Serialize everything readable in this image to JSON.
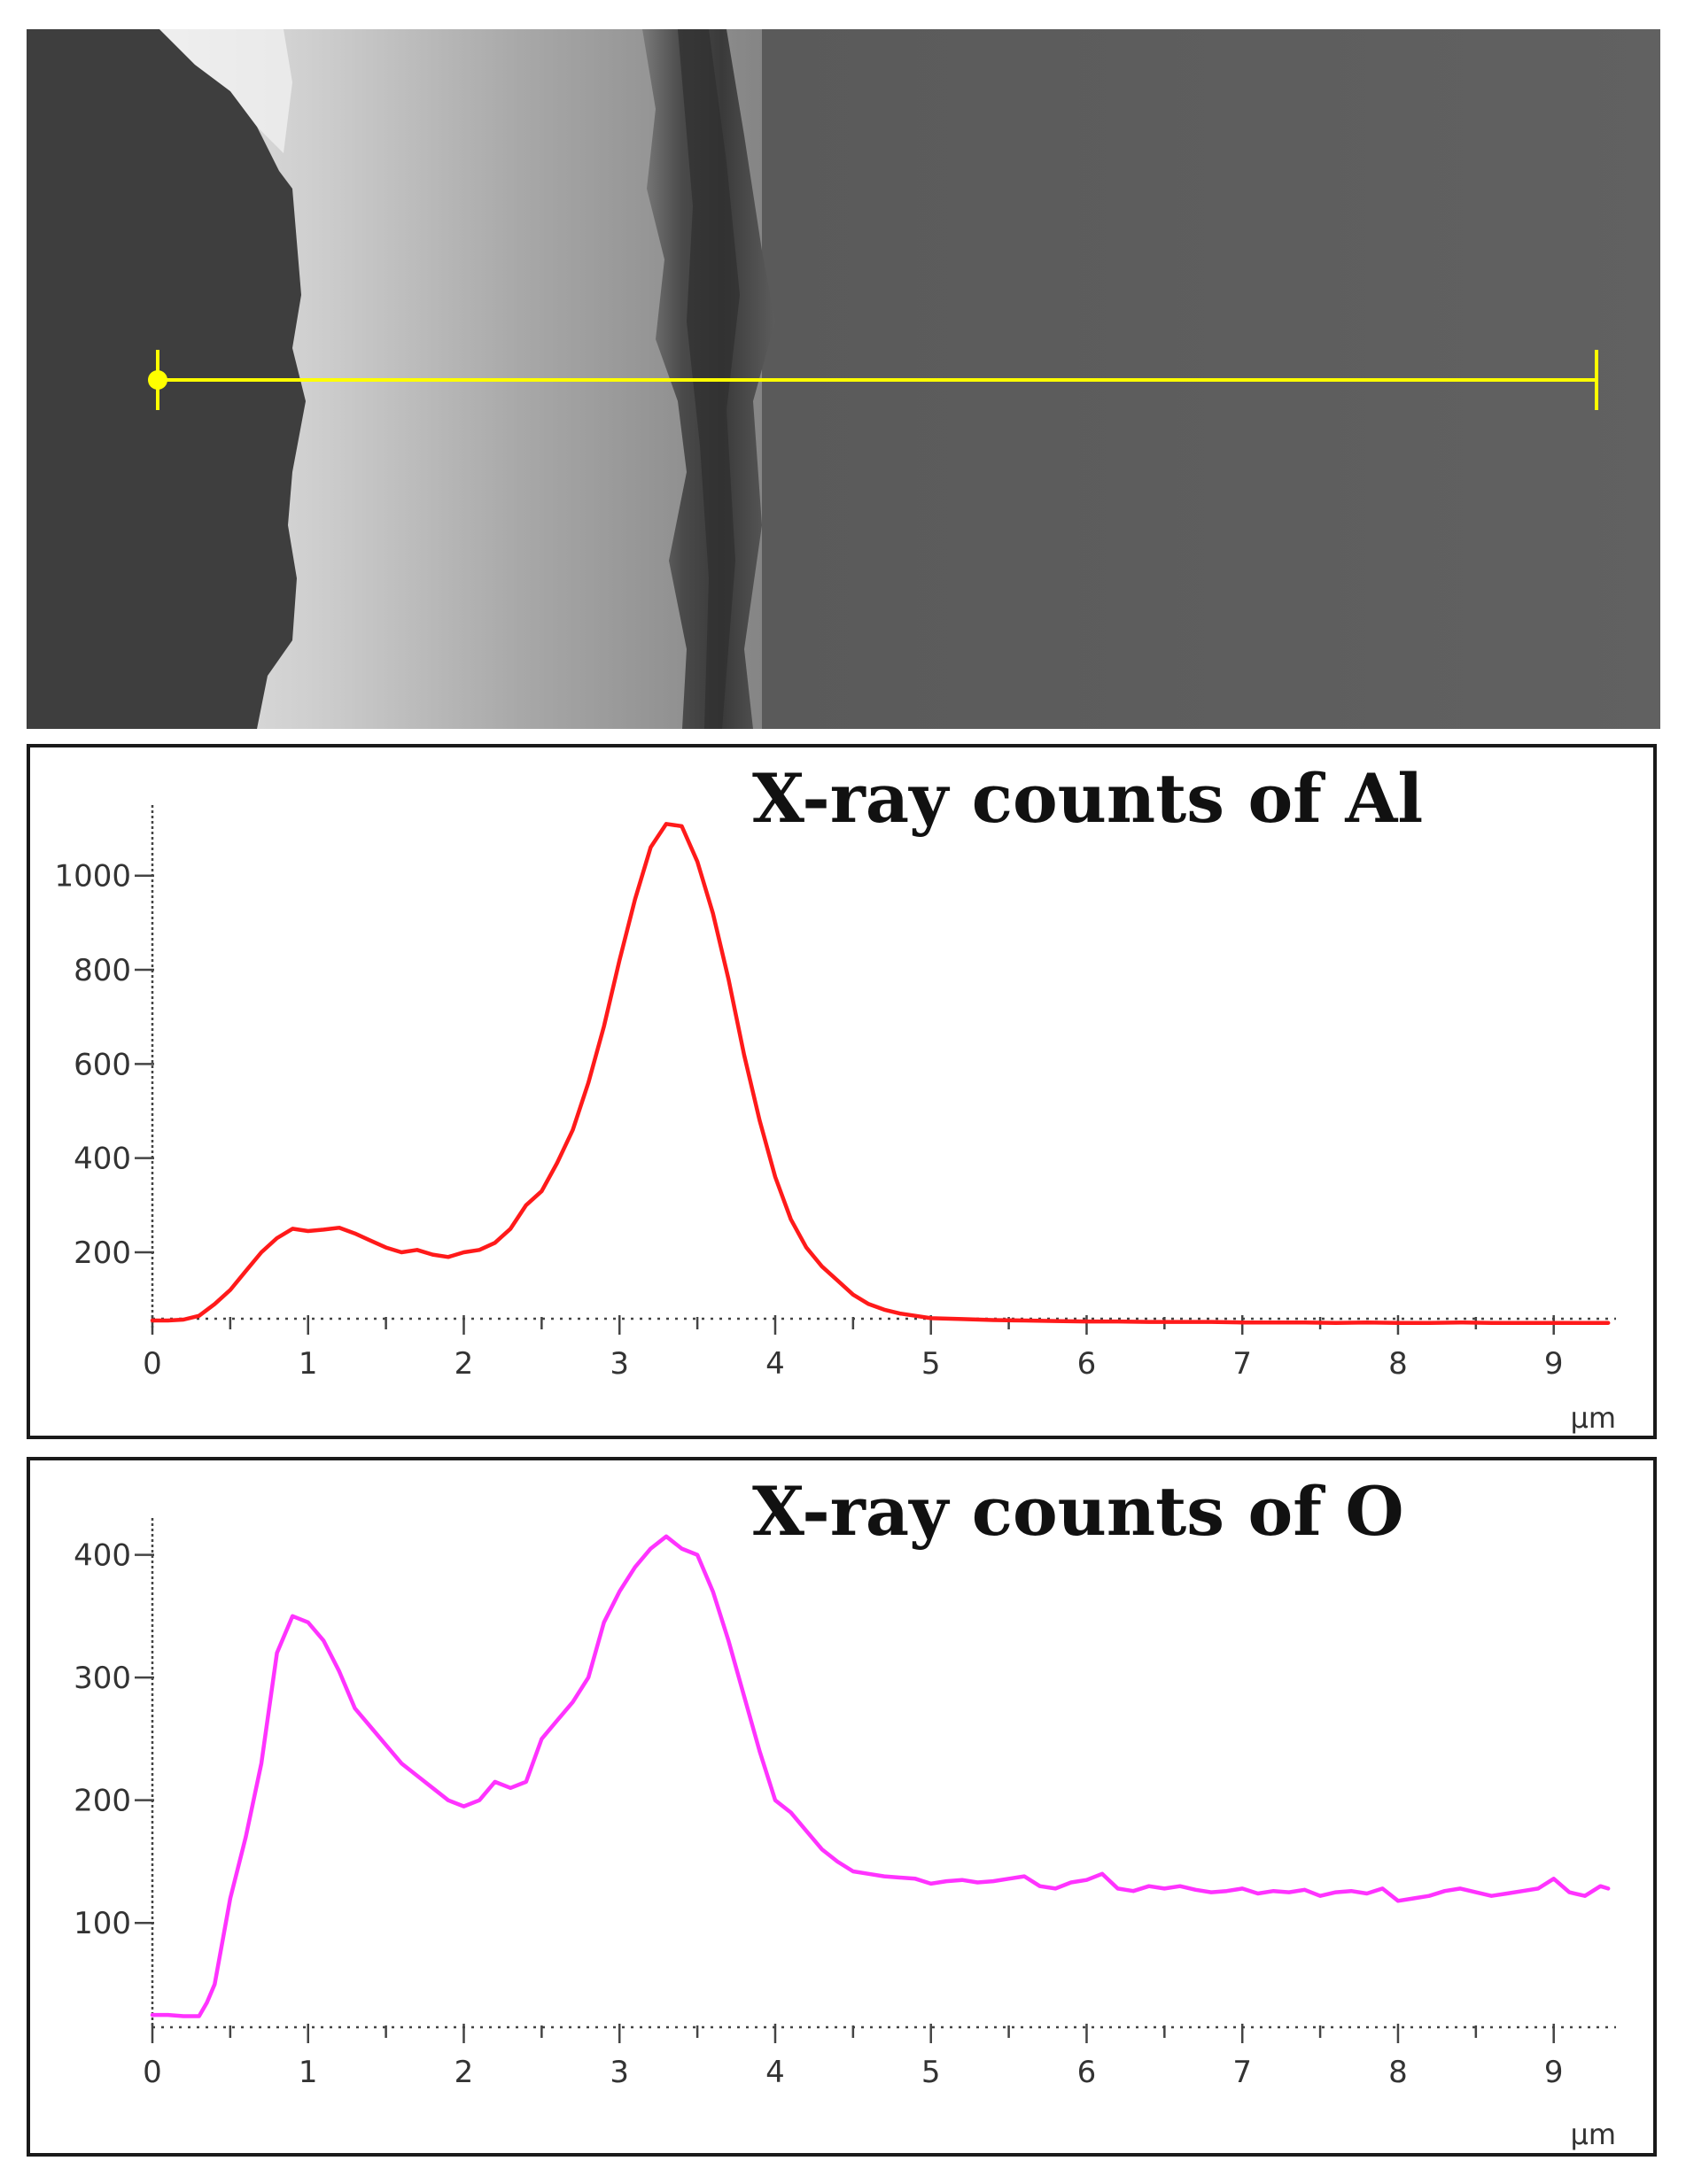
{
  "image": {
    "type": "SEM micrograph with EDS line-scan marker",
    "line_color": "#ffff00"
  },
  "chart_data": [
    {
      "type": "line",
      "title": "X-ray counts of Al",
      "xlabel": "µm",
      "ylabel": "",
      "xlim": [
        0,
        9.4
      ],
      "ylim": [
        40,
        1150
      ],
      "x_ticks": [
        0,
        1,
        2,
        3,
        4,
        5,
        6,
        7,
        8,
        9
      ],
      "y_ticks": [
        200,
        400,
        600,
        800,
        1000
      ],
      "grid": false,
      "series": [
        {
          "color": "#ff1a1a",
          "x": [
            0,
            0.1,
            0.2,
            0.3,
            0.4,
            0.5,
            0.6,
            0.7,
            0.8,
            0.9,
            1.0,
            1.1,
            1.2,
            1.3,
            1.4,
            1.5,
            1.6,
            1.7,
            1.8,
            1.9,
            2.0,
            2.1,
            2.2,
            2.3,
            2.4,
            2.5,
            2.6,
            2.7,
            2.8,
            2.9,
            3.0,
            3.1,
            3.2,
            3.3,
            3.4,
            3.5,
            3.6,
            3.7,
            3.8,
            3.9,
            4.0,
            4.1,
            4.2,
            4.3,
            4.4,
            4.5,
            4.6,
            4.7,
            4.8,
            4.9,
            5.0,
            5.2,
            5.4,
            5.6,
            5.8,
            6.0,
            6.2,
            6.4,
            6.6,
            6.8,
            7.0,
            7.2,
            7.4,
            7.6,
            7.8,
            8.0,
            8.2,
            8.4,
            8.6,
            8.8,
            9.0,
            9.2,
            9.35
          ],
          "values": [
            55,
            55,
            57,
            65,
            90,
            120,
            160,
            200,
            230,
            250,
            245,
            248,
            252,
            240,
            225,
            210,
            200,
            205,
            195,
            190,
            200,
            205,
            220,
            250,
            300,
            330,
            390,
            460,
            560,
            680,
            820,
            950,
            1060,
            1110,
            1105,
            1030,
            920,
            780,
            620,
            480,
            360,
            270,
            210,
            170,
            140,
            110,
            90,
            78,
            70,
            65,
            60,
            58,
            56,
            55,
            54,
            53,
            53,
            52,
            52,
            52,
            51,
            51,
            51,
            50,
            51,
            50,
            50,
            51,
            50,
            50,
            50,
            50,
            50
          ]
        }
      ]
    },
    {
      "type": "line",
      "title": "X-ray counts of O",
      "xlabel": "µm",
      "ylabel": "",
      "xlim": [
        0,
        9.4
      ],
      "ylim": [
        15,
        430
      ],
      "x_ticks": [
        0,
        1,
        2,
        3,
        4,
        5,
        6,
        7,
        8,
        9
      ],
      "y_ticks": [
        100,
        200,
        300,
        400
      ],
      "grid": false,
      "series": [
        {
          "color": "#ff33ff",
          "x": [
            0,
            0.1,
            0.2,
            0.3,
            0.35,
            0.4,
            0.5,
            0.6,
            0.7,
            0.8,
            0.9,
            1.0,
            1.1,
            1.2,
            1.3,
            1.4,
            1.5,
            1.6,
            1.7,
            1.8,
            1.9,
            2.0,
            2.1,
            2.2,
            2.3,
            2.4,
            2.5,
            2.6,
            2.7,
            2.8,
            2.9,
            3.0,
            3.1,
            3.2,
            3.3,
            3.4,
            3.5,
            3.6,
            3.7,
            3.8,
            3.9,
            4.0,
            4.1,
            4.2,
            4.3,
            4.4,
            4.5,
            4.6,
            4.7,
            4.8,
            4.9,
            5.0,
            5.1,
            5.2,
            5.3,
            5.4,
            5.5,
            5.6,
            5.7,
            5.8,
            5.9,
            6.0,
            6.1,
            6.2,
            6.3,
            6.4,
            6.5,
            6.6,
            6.7,
            6.8,
            6.9,
            7.0,
            7.1,
            7.2,
            7.3,
            7.4,
            7.5,
            7.6,
            7.7,
            7.8,
            7.9,
            8.0,
            8.1,
            8.2,
            8.3,
            8.4,
            8.5,
            8.6,
            8.7,
            8.8,
            8.9,
            9.0,
            9.1,
            9.2,
            9.3,
            9.35
          ],
          "values": [
            25,
            25,
            24,
            24,
            35,
            50,
            120,
            170,
            230,
            320,
            350,
            345,
            330,
            305,
            275,
            260,
            245,
            230,
            220,
            210,
            200,
            195,
            200,
            215,
            210,
            215,
            250,
            265,
            280,
            300,
            345,
            370,
            390,
            405,
            415,
            405,
            400,
            370,
            330,
            285,
            240,
            200,
            190,
            175,
            160,
            150,
            142,
            140,
            138,
            137,
            136,
            132,
            134,
            135,
            133,
            134,
            136,
            138,
            130,
            128,
            133,
            135,
            140,
            128,
            126,
            130,
            128,
            130,
            127,
            125,
            126,
            128,
            124,
            126,
            125,
            127,
            122,
            125,
            126,
            124,
            128,
            118,
            120,
            122,
            126,
            128,
            125,
            122,
            124,
            126,
            128,
            136,
            125,
            122,
            130,
            128
          ]
        }
      ]
    }
  ]
}
